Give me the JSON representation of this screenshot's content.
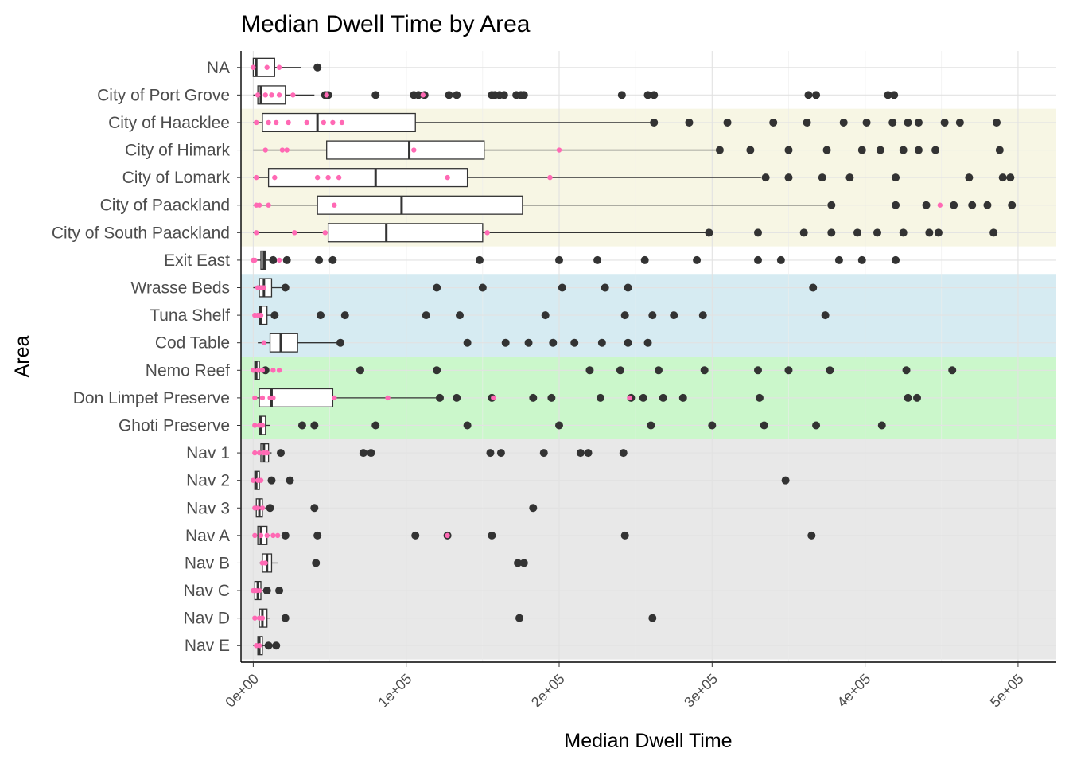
{
  "chart_data": {
    "type": "boxplot",
    "title": "Median Dwell Time by Area",
    "xlabel": "Median Dwell Time",
    "ylabel": "Area",
    "xlim": [
      -8000,
      525000
    ],
    "x_ticks": [
      0,
      100000,
      200000,
      300000,
      400000,
      500000
    ],
    "x_tick_labels": [
      "0e+00",
      "1e+05",
      "2e+05",
      "3e+05",
      "4e+05",
      "5e+05"
    ],
    "grid": true,
    "legend": "none",
    "colors": {
      "outlier": "#333333",
      "jitter_points": "#ff69b4",
      "box_fill": "#ffffff",
      "box_line": "#333333"
    },
    "bands": [
      {
        "from": "City of Haacklee",
        "to": "City of South Paackland",
        "color": "#f7f6e4"
      },
      {
        "from": "Wrasse Beds",
        "to": "Cod Table",
        "color": "#d6ebf2"
      },
      {
        "from": "Nemo Reef",
        "to": "Ghoti Preserve",
        "color": "#cbf7cb"
      },
      {
        "from": "Nav 1",
        "to": "Nav E",
        "color": "#e8e8e8"
      }
    ],
    "categories": [
      {
        "name": "NA",
        "q1": 0,
        "median": 2000,
        "q3": 14000,
        "whisker_low": 0,
        "whisker_high": 31000,
        "outliers": [
          42000
        ],
        "jitter": [
          0,
          9000,
          17000
        ]
      },
      {
        "name": "City of Port Grove",
        "q1": 3000,
        "median": 5000,
        "q3": 21000,
        "whisker_low": 0,
        "whisker_high": 40000,
        "outliers": [
          47000,
          49000,
          80000,
          105000,
          108000,
          112000,
          128000,
          133000,
          156000,
          158000,
          161000,
          164000,
          172000,
          175000,
          177000,
          241000,
          258000,
          262000,
          363000,
          368000,
          415000,
          419000
        ],
        "jitter": [
          3000,
          8000,
          12000,
          17000,
          26000,
          48000,
          111000
        ]
      },
      {
        "name": "City of Haacklee",
        "q1": 6000,
        "median": 42000,
        "q3": 106000,
        "whisker_low": 0,
        "whisker_high": 261000,
        "outliers": [
          262000,
          285000,
          310000,
          340000,
          362000,
          386000,
          401000,
          418000,
          428000,
          435000,
          452000,
          462000,
          486000
        ],
        "jitter": [
          2000,
          10000,
          15000,
          23000,
          35000,
          46000,
          52000,
          58000
        ]
      },
      {
        "name": "City of Himark",
        "q1": 48000,
        "median": 102000,
        "q3": 151000,
        "whisker_low": 0,
        "whisker_high": 303000,
        "outliers": [
          305000,
          325000,
          350000,
          375000,
          398000,
          410000,
          425000,
          435000,
          446000,
          488000
        ],
        "jitter": [
          8000,
          19000,
          22000,
          105000,
          200000
        ]
      },
      {
        "name": "City of Lomark",
        "q1": 10000,
        "median": 80000,
        "q3": 140000,
        "whisker_low": 0,
        "whisker_high": 332000,
        "outliers": [
          335000,
          350000,
          372000,
          390000,
          420000,
          468000,
          490000,
          495000
        ],
        "jitter": [
          2000,
          14000,
          42000,
          49000,
          56000,
          127000,
          194000
        ]
      },
      {
        "name": "City of Paackland",
        "q1": 42000,
        "median": 97000,
        "q3": 176000,
        "whisker_low": 0,
        "whisker_high": 375000,
        "outliers": [
          378000,
          420000,
          440000,
          458000,
          470000,
          480000,
          496000
        ],
        "jitter": [
          2000,
          4000,
          10000,
          53000,
          449000
        ]
      },
      {
        "name": "City of South Paackland",
        "q1": 49000,
        "median": 87000,
        "q3": 150000,
        "whisker_low": 0,
        "whisker_high": 296000,
        "outliers": [
          298000,
          330000,
          360000,
          378000,
          395000,
          408000,
          425000,
          442000,
          448000,
          484000
        ],
        "jitter": [
          2000,
          27000,
          47000,
          153000
        ]
      },
      {
        "name": "Exit East",
        "q1": 5000,
        "median": 7000,
        "q3": 8000,
        "whisker_low": 0,
        "whisker_high": 12000,
        "outliers": [
          13000,
          22000,
          43000,
          52000,
          148000,
          200000,
          225000,
          256000,
          290000,
          330000,
          345000,
          383000,
          398000,
          420000
        ],
        "jitter": [
          0,
          1000,
          17000
        ]
      },
      {
        "name": "Wrasse Beds",
        "q1": 4000,
        "median": 7000,
        "q3": 12000,
        "whisker_low": 0,
        "whisker_high": 19000,
        "outliers": [
          21000,
          120000,
          150000,
          202000,
          230000,
          245000,
          366000
        ],
        "jitter": [
          3000,
          5000,
          7000
        ]
      },
      {
        "name": "Tuna Shelf",
        "q1": 4000,
        "median": 5000,
        "q3": 9000,
        "whisker_low": 0,
        "whisker_high": 13000,
        "outliers": [
          14000,
          44000,
          60000,
          113000,
          135000,
          191000,
          243000,
          261000,
          275000,
          294000,
          374000
        ],
        "jitter": [
          1000,
          3000,
          5000
        ]
      },
      {
        "name": "Cod Table",
        "q1": 11000,
        "median": 18000,
        "q3": 29000,
        "whisker_low": 3000,
        "whisker_high": 55000,
        "outliers": [
          57000,
          140000,
          165000,
          180000,
          196000,
          210000,
          228000,
          245000,
          258000
        ],
        "jitter": [
          7000
        ]
      },
      {
        "name": "Nemo Reef",
        "q1": 1000,
        "median": 2000,
        "q3": 4000,
        "whisker_low": 0,
        "whisker_high": 6000,
        "outliers": [
          8000,
          70000,
          120000,
          220000,
          240000,
          265000,
          295000,
          330000,
          350000,
          377000,
          427000,
          457000
        ],
        "jitter": [
          0,
          3000,
          6000,
          13000,
          17000
        ]
      },
      {
        "name": "Don Limpet Preserve",
        "q1": 4000,
        "median": 12000,
        "q3": 52000,
        "whisker_low": 0,
        "whisker_high": 120000,
        "outliers": [
          122000,
          133000,
          156000,
          183000,
          195000,
          227000,
          247000,
          255000,
          268000,
          281000,
          331000,
          428000,
          434000
        ],
        "jitter": [
          1000,
          6000,
          11000,
          13000,
          53000,
          88000,
          157000,
          246000
        ]
      },
      {
        "name": "Ghoti Preserve",
        "q1": 4000,
        "median": 5000,
        "q3": 8000,
        "whisker_low": 0,
        "whisker_high": 11000,
        "outliers": [
          32000,
          40000,
          80000,
          140000,
          200000,
          260000,
          300000,
          334000,
          368000,
          411000
        ],
        "jitter": [
          1000,
          4000,
          6000
        ]
      },
      {
        "name": "Nav 1",
        "q1": 5000,
        "median": 7000,
        "q3": 10000,
        "whisker_low": 0,
        "whisker_high": 12000,
        "outliers": [
          18000,
          72000,
          77000,
          155000,
          162000,
          190000,
          214000,
          219000,
          242000
        ],
        "jitter": [
          1000,
          4000,
          7000,
          9000
        ]
      },
      {
        "name": "Nav 2",
        "q1": 1000,
        "median": 2000,
        "q3": 4000,
        "whisker_low": 0,
        "whisker_high": 6000,
        "outliers": [
          12000,
          24000,
          348000
        ],
        "jitter": [
          0,
          3000,
          5000
        ]
      },
      {
        "name": "Nav 3",
        "q1": 2000,
        "median": 4000,
        "q3": 6000,
        "whisker_low": 0,
        "whisker_high": 8000,
        "outliers": [
          11000,
          40000,
          183000
        ],
        "jitter": [
          1000,
          3000,
          6000
        ]
      },
      {
        "name": "Nav A",
        "q1": 3000,
        "median": 5000,
        "q3": 9000,
        "whisker_low": 0,
        "whisker_high": 11000,
        "outliers": [
          21000,
          42000,
          106000,
          127000,
          156000,
          243000,
          365000
        ],
        "jitter": [
          1000,
          5000,
          9000,
          13000,
          16000,
          127000
        ]
      },
      {
        "name": "Nav B",
        "q1": 6000,
        "median": 9000,
        "q3": 12000,
        "whisker_low": 4000,
        "whisker_high": 16000,
        "outliers": [
          41000,
          173000,
          177000
        ],
        "jitter": [
          6000,
          8000
        ]
      },
      {
        "name": "Nav C",
        "q1": 1000,
        "median": 3000,
        "q3": 5000,
        "whisker_low": 0,
        "whisker_high": 7000,
        "outliers": [
          9000,
          17000
        ],
        "jitter": [
          0,
          2000,
          4000
        ]
      },
      {
        "name": "Nav D",
        "q1": 4000,
        "median": 6000,
        "q3": 9000,
        "whisker_low": 0,
        "whisker_high": 11000,
        "outliers": [
          21000,
          174000,
          261000
        ],
        "jitter": [
          1000,
          4000,
          6000
        ]
      },
      {
        "name": "Nav E",
        "q1": 3000,
        "median": 4000,
        "q3": 6000,
        "whisker_low": 0,
        "whisker_high": 8000,
        "outliers": [
          10000,
          15000
        ],
        "jitter": [
          2000,
          4000
        ]
      }
    ]
  }
}
